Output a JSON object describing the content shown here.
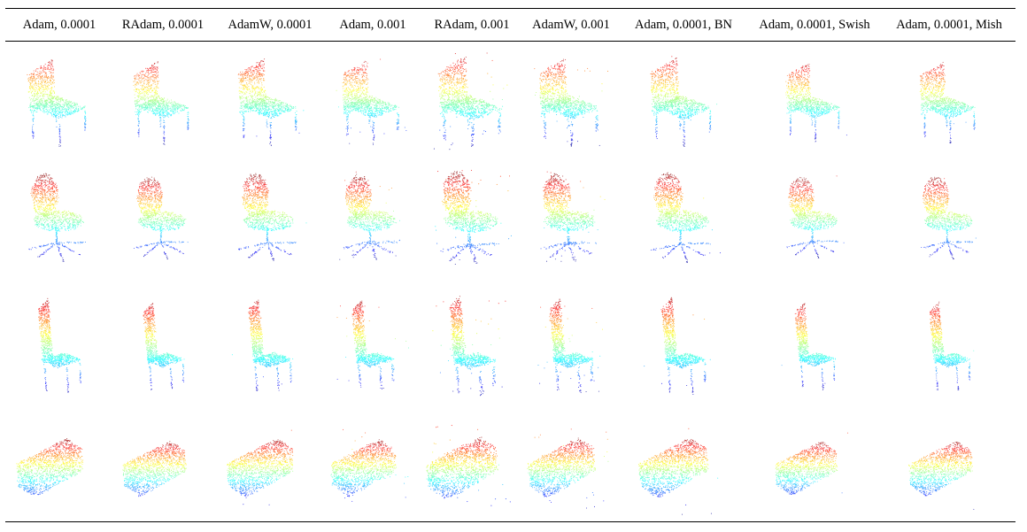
{
  "figure": {
    "column_labels": [
      "Adam, 0.0001",
      "RAdam, 0.0001",
      "AdamW, 0.0001",
      "Adam, 0.001",
      "RAdam, 0.001",
      "AdamW, 0.001",
      "Adam, 0.0001, BN",
      "Adam, 0.0001, Swish",
      "Adam, 0.0001, Mish"
    ],
    "rows": [
      {
        "object": "chair-straight-back",
        "shape_kind": "chair"
      },
      {
        "object": "office-swivel-chair",
        "shape_kind": "office"
      },
      {
        "object": "tall-back-chair",
        "shape_kind": "tallchair"
      },
      {
        "object": "sofa",
        "shape_kind": "sofa"
      }
    ],
    "colormap": "jet (height-coded)"
  }
}
